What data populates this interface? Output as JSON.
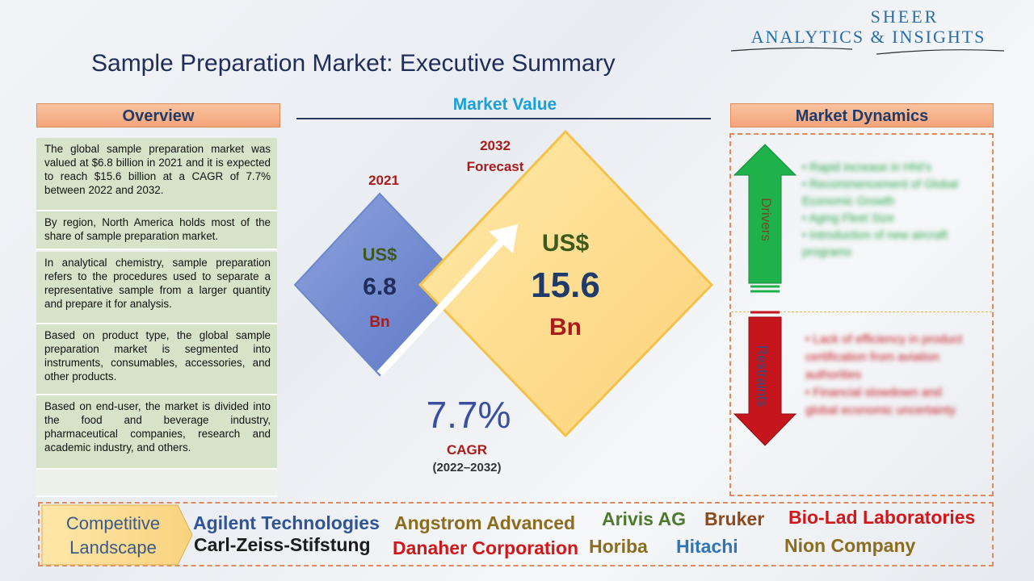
{
  "brand": {
    "line1": "SHEER",
    "line2": "ANALYTICS & INSIGHTS"
  },
  "title": "Sample Preparation Market: Executive Summary",
  "overview": {
    "header": "Overview",
    "paragraphs": [
      "The global sample preparation market was valued at $6.8 billion in 2021 and it is expected to reach $15.6 billion at a CAGR of 7.7% between 2022 and 2032.",
      "By region, North America holds most of the share of sample preparation market.",
      "In analytical chemistry, sample preparation refers to the procedures used to separate a representative sample from a larger quantity and prepare it for analysis.",
      "Based on product type, the global sample preparation market is segmented into instruments, consumables, accessories, and other products.",
      "Based on end-user, the market is divided into the food and beverage industry, pharmaceutical companies, research and academic industry, and others.",
      ""
    ]
  },
  "market_value": {
    "header": "Market Value",
    "y2021": {
      "year": "2021",
      "currency": "US$",
      "value": "6.8",
      "unit": "Bn"
    },
    "y2032": {
      "year": "2032",
      "sub": "Forecast",
      "currency": "US$",
      "value": "15.6",
      "unit": "Bn"
    },
    "cagr": {
      "value": "7.7%",
      "label": "CAGR",
      "period": "(2022–2032)"
    }
  },
  "dynamics": {
    "header": "Market Dynamics",
    "drivers_label": "Drivers",
    "restraints_label": "Restraints",
    "drivers": [
      "Rapid increase in HNI's",
      "Recommencement of Global Economic Growth",
      "Aging Fleet Size",
      "Introduction of new aircraft programs"
    ],
    "restraints": [
      "Lack of efficiency in product certification from aviation authorities",
      "Financial slowdown and global economic uncertainty"
    ],
    "colors": {
      "driver": "#1fb24a",
      "restraint": "#c4161c"
    }
  },
  "competitive": {
    "label_line1": "Competitive",
    "label_line2": "Landscape",
    "companies": [
      {
        "name": "Agilent Technologies",
        "color": "#2f5597"
      },
      {
        "name": "Angstrom Advanced",
        "color": "#8c6d1f"
      },
      {
        "name": "Arivis AG",
        "color": "#4e7a2e"
      },
      {
        "name": "Bruker",
        "color": "#8a4b1c"
      },
      {
        "name": "Bio-Lad Laboratories",
        "color": "#d0181b"
      },
      {
        "name": "Carl-Zeiss-Stifstung",
        "color": "#1c1c1c"
      },
      {
        "name": "Danaher Corporation",
        "color": "#d0181b"
      },
      {
        "name": "Horiba",
        "color": "#8c6d1f"
      },
      {
        "name": "Hitachi",
        "color": "#2e75b6"
      },
      {
        "name": "Nion Company",
        "color": "#8c6d1f"
      }
    ]
  }
}
